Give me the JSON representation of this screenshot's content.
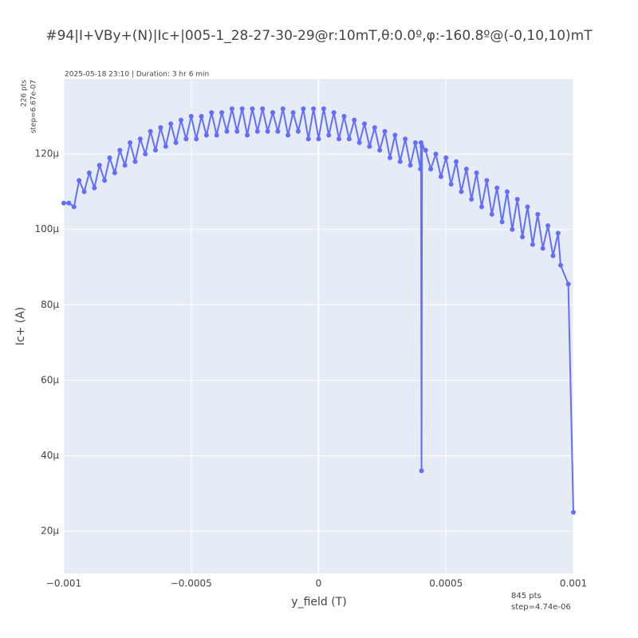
{
  "chart_data": {
    "type": "line",
    "title": "#94|I+VBy+(N)|Ic+|005-1_28-27-30-29@r:10mT,θ:0.0º,φ:-160.8º@(-0,10,10)mT",
    "subtitle": "2025-05-18 23:10 | Duration: 3 hr 6 min",
    "y_annotation": [
      "226 pts",
      "step=6.67e-07"
    ],
    "x_annotation": [
      "845 pts",
      "step=4.74e-06"
    ],
    "x_label": "y_field (T)",
    "y_label": "Ic+ (A)",
    "xlim": [
      -0.001,
      0.001
    ],
    "ylim": [
      8.8e-06,
      0.0001399
    ],
    "xticks": [
      {
        "value": -0.001,
        "label": "−0.001"
      },
      {
        "value": -0.0005,
        "label": "−0.0005"
      },
      0,
      0.0005,
      0.001
    ],
    "yticks": [
      {
        "value": 2e-05,
        "label": "20µ"
      },
      {
        "value": 4e-05,
        "label": "40µ"
      },
      {
        "value": 6e-05,
        "label": "60µ"
      },
      {
        "value": 8e-05,
        "label": "80µ"
      },
      {
        "value": 0.0001,
        "label": "100µ"
      },
      {
        "value": 0.00012,
        "label": "120µ"
      }
    ],
    "grid": true,
    "series": [
      {
        "color": "#636efa",
        "x": [
          -0.001,
          -0.00098,
          -0.00096,
          -0.00094,
          -0.00092,
          -0.0009,
          -0.00088,
          -0.00086,
          -0.00084,
          -0.00082,
          -0.0008,
          -0.00078,
          -0.00076,
          -0.00074,
          -0.00072,
          -0.0007,
          -0.00068,
          -0.00066,
          -0.00064,
          -0.00062,
          -0.0006,
          -0.00058,
          -0.00056,
          -0.00054,
          -0.00052,
          -0.0005,
          -0.00048,
          -0.00046,
          -0.00044,
          -0.00042,
          -0.0004,
          -0.00038,
          -0.00036,
          -0.00034,
          -0.00032,
          -0.0003,
          -0.00028,
          -0.00026,
          -0.00024,
          -0.00022,
          -0.0002,
          -0.00018,
          -0.00016,
          -0.00014,
          -0.00012,
          -0.0001,
          -8e-05,
          -6e-05,
          -4e-05,
          -2e-05,
          0.0,
          2e-05,
          4e-05,
          6e-05,
          8e-05,
          0.0001,
          0.00012,
          0.00014,
          0.00016,
          0.00018,
          0.0002,
          0.00022,
          0.00024,
          0.00026,
          0.00028,
          0.0003,
          0.00032,
          0.00034,
          0.00036,
          0.00038,
          0.0004,
          0.000402,
          0.000404,
          0.000406,
          0.00042,
          0.00044,
          0.00046,
          0.00048,
          0.0005,
          0.00052,
          0.00054,
          0.00056,
          0.00058,
          0.0006,
          0.00062,
          0.00064,
          0.00066,
          0.00068,
          0.0007,
          0.00072,
          0.00074,
          0.00076,
          0.00078,
          0.0008,
          0.00082,
          0.00084,
          0.00086,
          0.00088,
          0.0009,
          0.00092,
          0.00094,
          0.00095,
          0.00098,
          0.001
        ],
        "values": [
          0.000107,
          0.000107,
          0.000106,
          0.000113,
          0.00011,
          0.000115,
          0.000111,
          0.000117,
          0.000113,
          0.000119,
          0.000115,
          0.000121,
          0.000117,
          0.000123,
          0.000118,
          0.000124,
          0.00012,
          0.000126,
          0.000121,
          0.000127,
          0.000122,
          0.000128,
          0.000123,
          0.000129,
          0.000124,
          0.00013,
          0.000124,
          0.00013,
          0.000125,
          0.000131,
          0.000125,
          0.000131,
          0.000126,
          0.000132,
          0.000126,
          0.000132,
          0.000125,
          0.000132,
          0.000126,
          0.000132,
          0.000126,
          0.000131,
          0.000126,
          0.000132,
          0.000125,
          0.000131,
          0.000126,
          0.000132,
          0.000124,
          0.000132,
          0.000124,
          0.000132,
          0.000125,
          0.000131,
          0.000124,
          0.00013,
          0.000124,
          0.000129,
          0.000123,
          0.000128,
          0.000122,
          0.000127,
          0.000121,
          0.000126,
          0.000119,
          0.000125,
          0.000118,
          0.000124,
          0.000117,
          0.000123,
          0.000116,
          0.000123,
          3.6e-05,
          0.000122,
          0.000121,
          0.000116,
          0.00012,
          0.000114,
          0.000119,
          0.000112,
          0.000118,
          0.00011,
          0.000116,
          0.000108,
          0.000115,
          0.000106,
          0.000113,
          0.000104,
          0.000111,
          0.000102,
          0.00011,
          0.0001,
          0.000108,
          9.8e-05,
          0.000106,
          9.6e-05,
          0.000104,
          9.5e-05,
          0.000101,
          9.3e-05,
          9.9e-05,
          9.05e-05,
          8.55e-05,
          2.5e-05
        ]
      }
    ]
  }
}
